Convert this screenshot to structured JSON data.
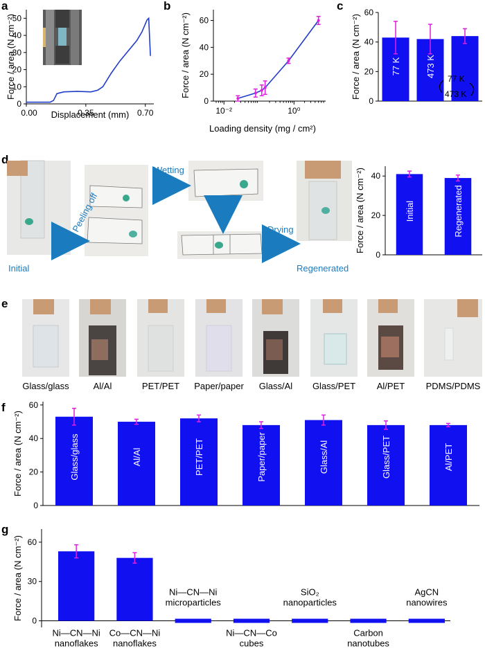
{
  "panels": {
    "a": "a",
    "b": "b",
    "c": "c",
    "d": "d",
    "e": "e",
    "f": "f",
    "g": "g"
  },
  "colors": {
    "bar": "#1010f0",
    "error": "#e020e0",
    "line": "#1f3cc8",
    "arrow": "#1a7bbf"
  },
  "panel_d": {
    "initial": "Initial",
    "peeling": "Peeling off",
    "wetting": "Wetting",
    "drying": "Drying",
    "regenerated": "Regenerated"
  },
  "panel_e": {
    "captions": [
      "Glass/glass",
      "Al/Al",
      "PET/PET",
      "Paper/paper",
      "Glass/Al",
      "Glass/PET",
      "Al/PET",
      "PDMS/PDMS"
    ]
  },
  "panel_c_annot": {
    "top": "77 K",
    "bottom": "473 K"
  },
  "chart_data": [
    {
      "id": "a",
      "type": "line",
      "xlabel": "Displacement (mm)",
      "ylabel": "Force / area (N cm⁻²)",
      "xlim": [
        0.0,
        0.75
      ],
      "ylim": [
        0,
        55
      ],
      "xticks": [
        0.0,
        0.35,
        0.7
      ],
      "xticklabels": [
        "0.00",
        "0.35",
        "0.70"
      ],
      "yticks": [
        0,
        10,
        20,
        30,
        40,
        50
      ],
      "x": [
        0.0,
        0.14,
        0.16,
        0.18,
        0.22,
        0.3,
        0.38,
        0.42,
        0.45,
        0.5,
        0.55,
        0.6,
        0.65,
        0.68,
        0.71,
        0.72,
        0.73
      ],
      "y": [
        1,
        1,
        2,
        6,
        7,
        7.3,
        7,
        8,
        10,
        18,
        25,
        31,
        37,
        42,
        49,
        50,
        28
      ]
    },
    {
      "id": "b",
      "type": "line",
      "xlabel": "Loading density (mg / cm²)",
      "ylabel": "Force / area (N cm⁻²)",
      "xscale": "log",
      "xlim": [
        0.005,
        8
      ],
      "ylim": [
        0,
        68
      ],
      "xticks": [
        0.01,
        1
      ],
      "xticklabels": [
        "10⁻²",
        "10⁰"
      ],
      "yticks": [
        0,
        20,
        40,
        60
      ],
      "x": [
        0.025,
        0.08,
        0.12,
        0.15,
        0.7,
        5.0
      ],
      "y": [
        2,
        6,
        8,
        10,
        30,
        60
      ],
      "err": [
        2,
        3,
        4,
        5,
        2,
        3
      ]
    },
    {
      "id": "c",
      "type": "bar",
      "ylabel": "Force / area (N cm⁻²)",
      "ylim": [
        0,
        60
      ],
      "yticks": [
        0,
        20,
        40,
        60
      ],
      "categories": [
        "77 K",
        "473 K",
        ""
      ],
      "values": [
        43,
        42,
        44
      ],
      "err": [
        11,
        10,
        5
      ]
    },
    {
      "id": "d",
      "type": "bar",
      "ylabel": "Force / area (N cm⁻²)",
      "ylim": [
        0,
        45
      ],
      "yticks": [
        0,
        20,
        40
      ],
      "categories": [
        "Initial",
        "Regenerated"
      ],
      "values": [
        41,
        39
      ],
      "err": [
        1.5,
        1.5
      ]
    },
    {
      "id": "f",
      "type": "bar",
      "ylabel": "Force / area (N cm⁻²)",
      "ylim": [
        0,
        62
      ],
      "yticks": [
        0,
        20,
        40,
        60
      ],
      "categories": [
        "Glass/glass",
        "Al/Al",
        "PET/PET",
        "Paper/paper",
        "Glass/Al",
        "Glass/PET",
        "Al/PET"
      ],
      "values": [
        53,
        50,
        52,
        48,
        51,
        48,
        48
      ],
      "err": [
        5,
        1.5,
        2,
        2,
        3,
        2.5,
        1
      ]
    },
    {
      "id": "g",
      "type": "bar",
      "ylabel": "Force / area (N cm⁻²)",
      "ylim": [
        -5,
        70
      ],
      "yticks": [
        0,
        30,
        60
      ],
      "categories": [
        "Ni—CN—Ni nanoflakes",
        "Co—CN—Ni nanoflakes",
        "Ni—CN—Ni microparticles",
        "Ni—CN—Co cubes",
        "SiO₂ nanoparticles",
        "Carbon nanotubes",
        "AgCN nanowires"
      ],
      "labels_line1": [
        "Ni—CN—Ni",
        "Co—CN—Ni",
        "Ni—CN—Ni",
        "Ni—CN—Co",
        "SiO₂",
        "Carbon",
        "AgCN"
      ],
      "labels_line2": [
        "nanoflakes",
        "nanoflakes",
        "microparticles",
        "cubes",
        "nanoparticles",
        "nanotubes",
        "nanowires"
      ],
      "values": [
        53,
        48,
        0,
        0,
        0,
        0,
        0
      ],
      "err": [
        5,
        4,
        0,
        0,
        0,
        0,
        0
      ]
    }
  ]
}
